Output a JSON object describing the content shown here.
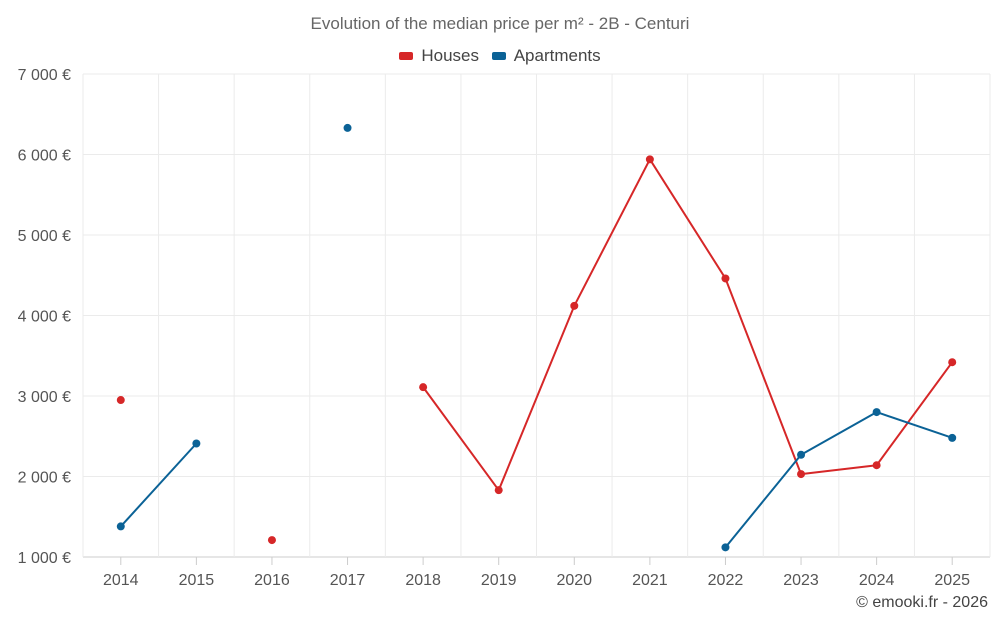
{
  "chart_data": {
    "type": "line",
    "title": "Evolution of the median price per m² - 2B - Centuri",
    "categories": [
      "2014",
      "2015",
      "2016",
      "2017",
      "2018",
      "2019",
      "2020",
      "2021",
      "2022",
      "2023",
      "2024",
      "2025"
    ],
    "ylim": [
      1000,
      7000
    ],
    "yticks": [
      1000,
      2000,
      3000,
      4000,
      5000,
      6000,
      7000
    ],
    "ytick_labels": [
      "1 000 €",
      "2 000 €",
      "3 000 €",
      "4 000 €",
      "5 000 €",
      "6 000 €",
      "7 000 €"
    ],
    "grid": true,
    "legend_position": "top-center",
    "series": [
      {
        "name": "Houses",
        "color": "#d62728",
        "values": [
          2950,
          null,
          1210,
          null,
          3110,
          1830,
          4120,
          5940,
          4460,
          2030,
          2140,
          3420
        ]
      },
      {
        "name": "Apartments",
        "color": "#0b6296",
        "values": [
          1380,
          2410,
          null,
          6330,
          null,
          null,
          null,
          null,
          1120,
          2270,
          2800,
          2480
        ]
      }
    ]
  },
  "credit": "© emooki.fr - 2026"
}
